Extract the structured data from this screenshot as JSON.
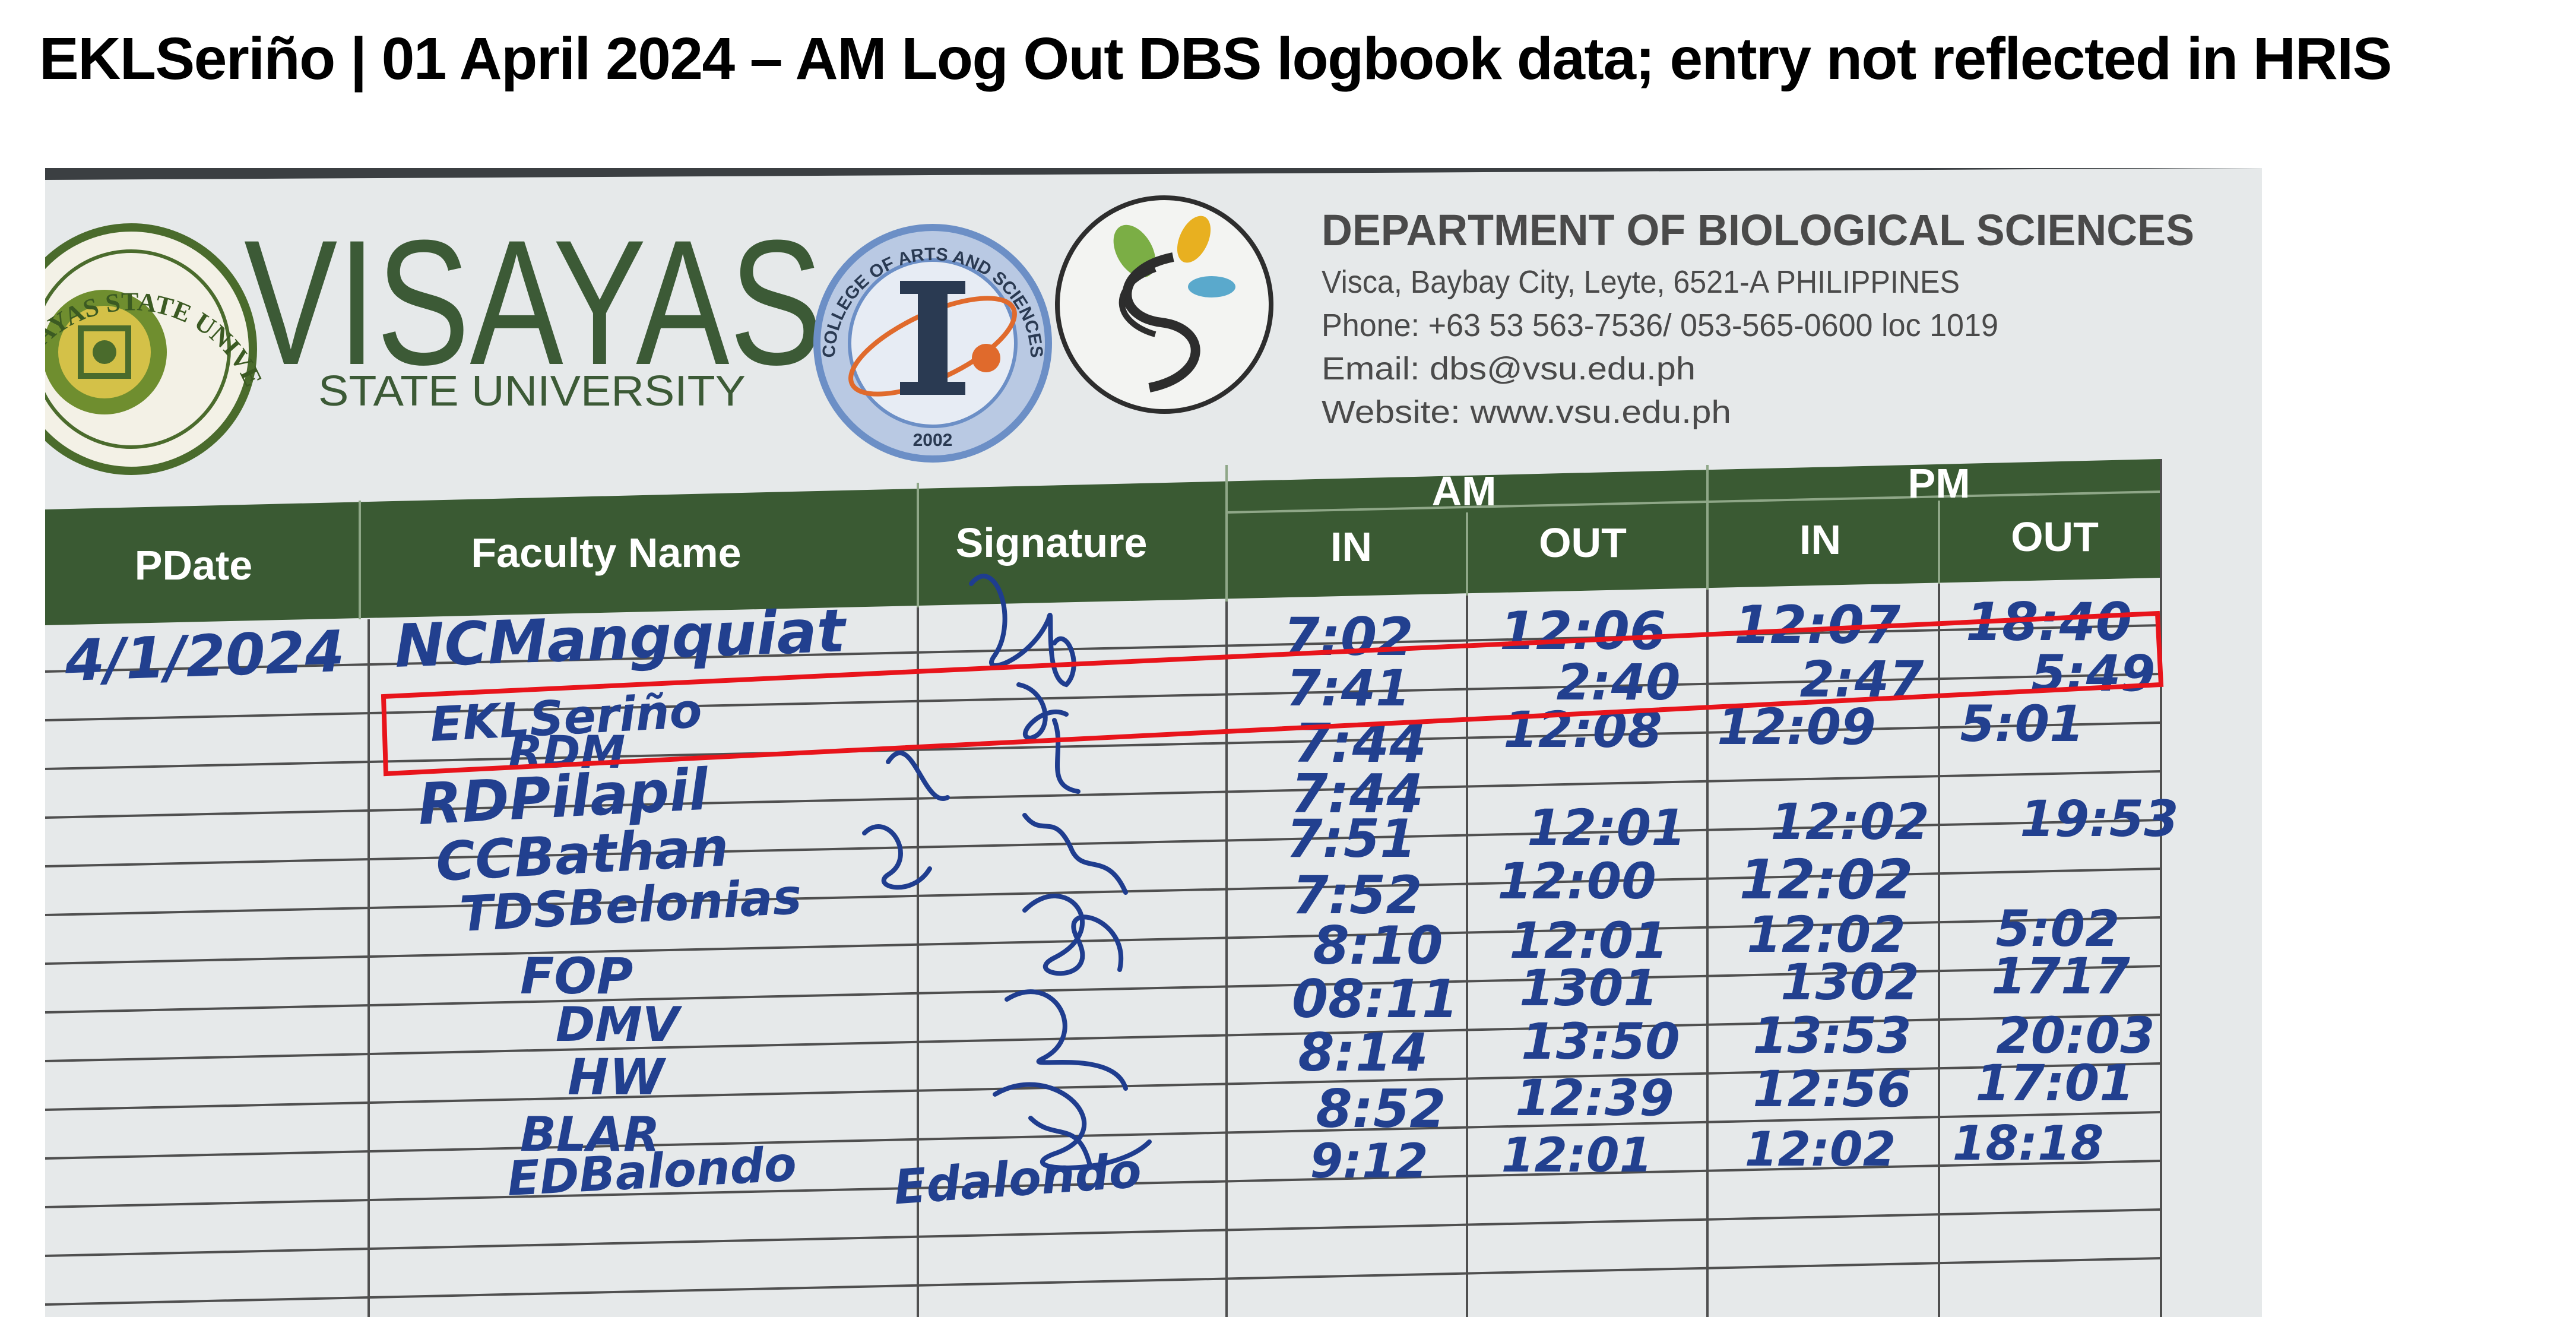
{
  "page_title": "EKLSeriño | 01 April 2024 – AM Log Out DBS logbook data; entry not reflected in HRIS",
  "letterhead": {
    "university_seal_text": "VISAYAS STATE UNIVERSITY",
    "university_name": "VISAYAS",
    "university_subtitle": "STATE UNIVERSITY",
    "college_seal_text": "COLLEGE OF ARTS AND SCIENCES",
    "college_seal_year": "2002",
    "department": "DEPARTMENT OF BIOLOGICAL SCIENCES",
    "address": "Visca, Baybay City, Leyte, 6521-A PHILIPPINES",
    "phone": "Phone: +63 53 563-7536/ 053-565-0600 loc 1019",
    "email": "Email: dbs@vsu.edu.ph",
    "website": "Website: www.vsu.edu.ph"
  },
  "table": {
    "headers": {
      "date": "PDate",
      "faculty": "Faculty Name",
      "signature": "Signature",
      "am": "AM",
      "pm": "PM",
      "am_in": "IN",
      "am_out": "OUT",
      "pm_in": "IN",
      "pm_out": "OUT"
    },
    "date": "4/1/2024",
    "rows": [
      {
        "name": "NCMangquiat",
        "am_in": "7:02",
        "am_out": "12:06",
        "pm_in": "12:07",
        "pm_out": "18:40"
      },
      {
        "name": "EKLSeriño",
        "am_in": "7:41",
        "am_out": "2:40",
        "pm_in": "2:47",
        "pm_out": "5:49"
      },
      {
        "name": "RDM",
        "am_in": "7:44",
        "am_out": "12:08",
        "pm_in": "12:09",
        "pm_out": "5:01"
      },
      {
        "name": "RDPilapil",
        "am_in": "7:44",
        "am_out": "",
        "pm_in": "",
        "pm_out": ""
      },
      {
        "name": "CCBathan",
        "am_in": "7:51",
        "am_out": "12:01",
        "pm_in": "12:02",
        "pm_out": "19:53"
      },
      {
        "name": "TDSBelonias",
        "am_in": "7:52",
        "am_out": "12:00",
        "pm_in": "12:02",
        "pm_out": ""
      },
      {
        "name": "FOP",
        "am_in": "8:10",
        "am_out": "12:01",
        "pm_in": "12:02",
        "pm_out": "5:02"
      },
      {
        "name": "DMV",
        "am_in": "08:11",
        "am_out": "1301",
        "pm_in": "1302",
        "pm_out": "1717"
      },
      {
        "name": "HW",
        "am_in": "8:14",
        "am_out": "13:50",
        "pm_in": "13:53",
        "pm_out": "20:03"
      },
      {
        "name": "BLAR",
        "am_in": "8:52",
        "am_out": "12:39",
        "pm_in": "12:56",
        "pm_out": "17:01"
      },
      {
        "name": "EDBalondo",
        "am_in": "9:12",
        "am_out": "12:01",
        "pm_in": "12:02",
        "pm_out": "18:18"
      }
    ],
    "signature_text": "Edalondo"
  },
  "highlight_color": "#e8141b"
}
